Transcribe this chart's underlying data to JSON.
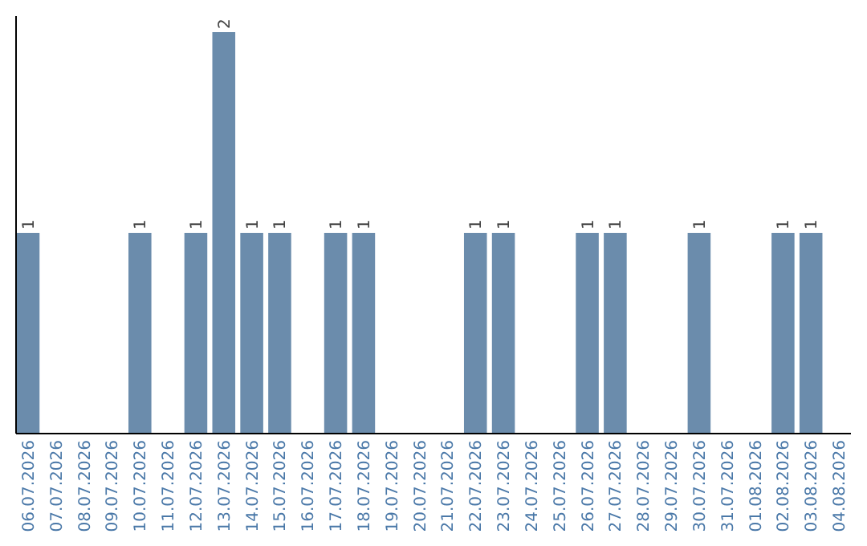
{
  "chart_data": {
    "type": "bar",
    "categories": [
      "06.07.2026",
      "07.07.2026",
      "08.07.2026",
      "09.07.2026",
      "10.07.2026",
      "11.07.2026",
      "12.07.2026",
      "13.07.2026",
      "14.07.2026",
      "15.07.2026",
      "16.07.2026",
      "17.07.2026",
      "18.07.2026",
      "19.07.2026",
      "20.07.2026",
      "21.07.2026",
      "22.07.2026",
      "23.07.2026",
      "24.07.2026",
      "25.07.2026",
      "26.07.2026",
      "27.07.2026",
      "28.07.2026",
      "29.07.2026",
      "30.07.2026",
      "31.07.2026",
      "01.08.2026",
      "02.08.2026",
      "03.08.2026",
      "04.08.2026"
    ],
    "values": [
      1,
      0,
      0,
      0,
      1,
      0,
      1,
      2,
      1,
      1,
      0,
      1,
      1,
      0,
      0,
      0,
      1,
      1,
      0,
      0,
      1,
      1,
      0,
      0,
      1,
      0,
      0,
      1,
      1,
      0
    ],
    "value_labels": [
      "1",
      null,
      null,
      null,
      "1",
      null,
      "1",
      "2",
      "1",
      "1",
      null,
      "1",
      "1",
      null,
      null,
      null,
      "1",
      "1",
      null,
      null,
      "1",
      "1",
      null,
      null,
      "1",
      null,
      null,
      "1",
      "1",
      null
    ],
    "color": "#6b8cac",
    "ylim": [
      0,
      2.08
    ],
    "tick_labels": "x"
  }
}
